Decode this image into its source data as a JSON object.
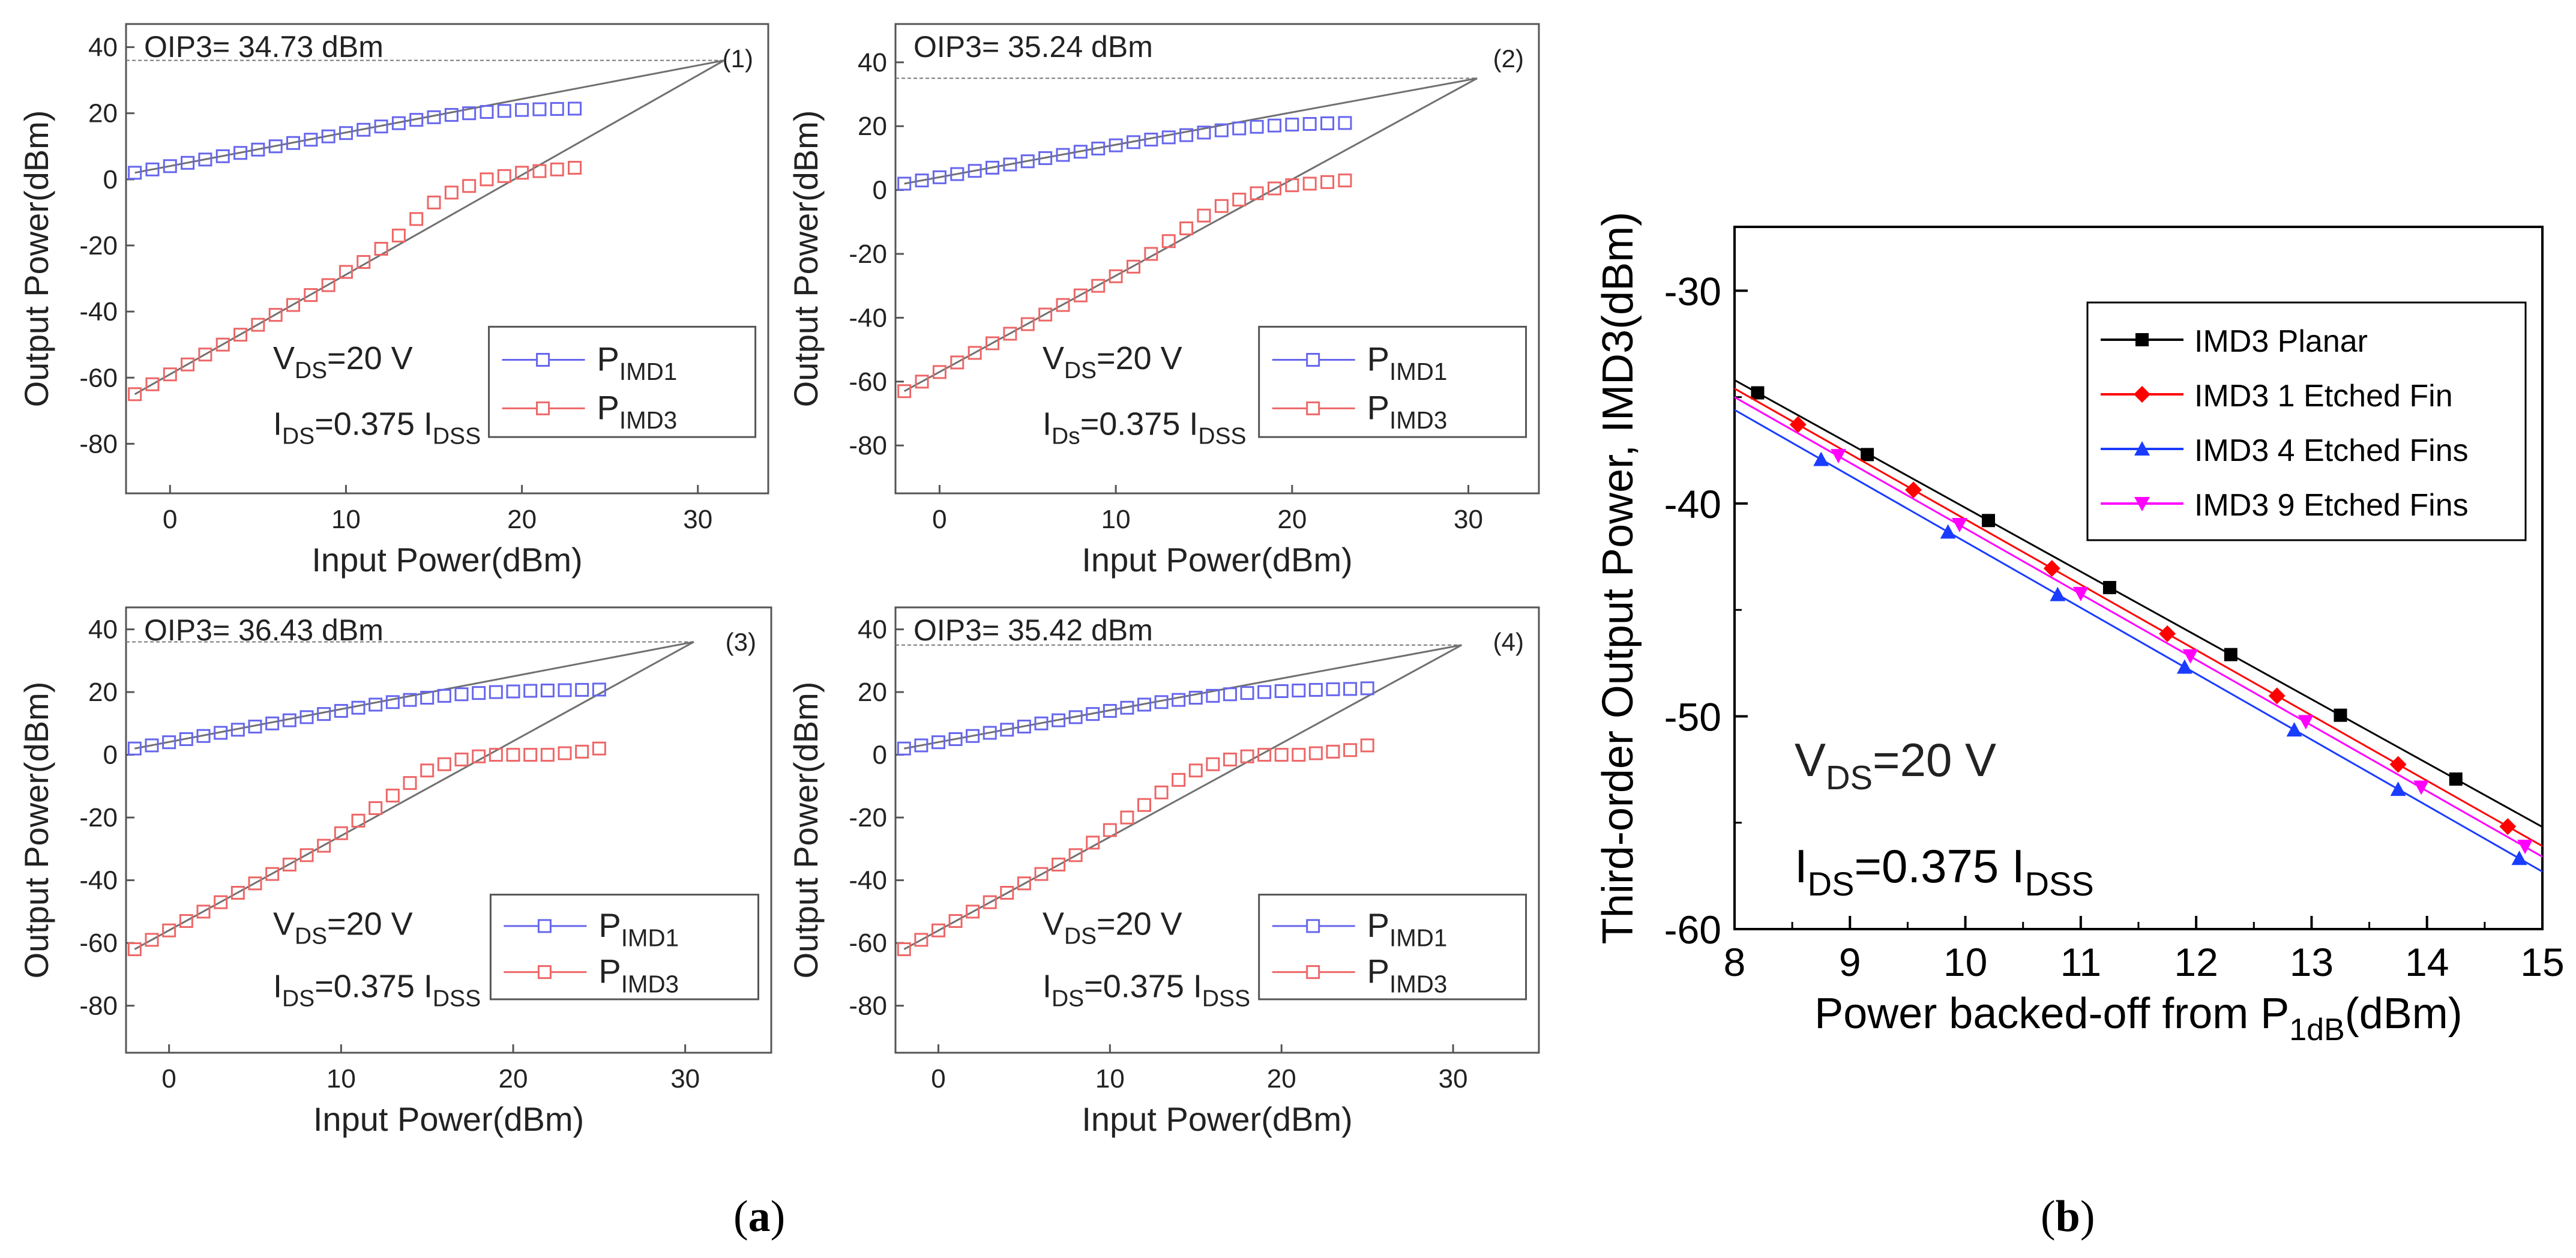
{
  "figure": {
    "caption_a": "(a)",
    "caption_b": "(b)",
    "panel_a_id": "a",
    "panel_b_id": "b"
  },
  "colors": {
    "pimd1": "#6666ee",
    "pimd3": "#ee6666",
    "fit": "#707070",
    "planar": "#000000",
    "etched1": "#ff0000",
    "etched4": "#1a3cff",
    "etched9": "#ff00ff"
  },
  "chart_data": [
    {
      "type": "line",
      "panel": "(1)",
      "title": "OIP3= 34.73 dBm",
      "xlabel": "Input Power(dBm)",
      "ylabel": "Output Power(dBm)",
      "xlim": [
        -2.5,
        34
      ],
      "ylim": [
        -95,
        47
      ],
      "xticks": [
        0,
        10,
        20,
        30
      ],
      "yticks": [
        -80,
        -60,
        -40,
        -20,
        0,
        20,
        40
      ],
      "annotations": [
        "VDS=20 V",
        "IDS=0.375 IDSS"
      ],
      "oip3_point": [
        31.5,
        36
      ],
      "x": [
        -2,
        -1,
        0,
        1,
        2,
        3,
        4,
        5,
        6,
        7,
        8,
        9,
        10,
        11,
        12,
        13,
        14,
        15,
        16,
        17,
        18,
        19,
        20,
        21,
        22,
        23
      ],
      "series": [
        {
          "name": "PIMD1",
          "values": [
            2,
            3,
            4,
            5,
            6,
            7,
            8,
            9,
            10,
            11,
            12,
            13,
            14,
            15,
            16,
            17,
            18,
            18.8,
            19.5,
            20,
            20.4,
            20.7,
            21,
            21.2,
            21.3,
            21.4
          ]
        },
        {
          "name": "PIMD3",
          "values": [
            -65,
            -62,
            -59,
            -56,
            -53,
            -50,
            -47,
            -44,
            -41,
            -38,
            -35,
            -32,
            -28,
            -25,
            -21,
            -17,
            -12,
            -7,
            -4,
            -2,
            0,
            1,
            2,
            2.5,
            3,
            3.5
          ]
        }
      ]
    },
    {
      "type": "line",
      "panel": "(2)",
      "title": "OIP3= 35.24 dBm",
      "xlabel": "Input Power(dBm)",
      "ylabel": "Output Power(dBm)",
      "xlim": [
        -2.5,
        34
      ],
      "ylim": [
        -95,
        52
      ],
      "xticks": [
        0,
        10,
        20,
        30
      ],
      "yticks": [
        -80,
        -60,
        -40,
        -20,
        0,
        20,
        40
      ],
      "annotations": [
        "VDS=20 V",
        "IDs=0.375 IDSS"
      ],
      "oip3_point": [
        30.5,
        35
      ],
      "x": [
        -2,
        -1,
        0,
        1,
        2,
        3,
        4,
        5,
        6,
        7,
        8,
        9,
        10,
        11,
        12,
        13,
        14,
        15,
        16,
        17,
        18,
        19,
        20,
        21,
        22,
        23
      ],
      "series": [
        {
          "name": "PIMD1",
          "values": [
            2,
            3,
            4,
            5,
            6,
            7,
            8,
            9,
            10,
            11,
            12,
            13,
            14,
            15,
            15.8,
            16.5,
            17.2,
            18,
            18.7,
            19.3,
            19.8,
            20.2,
            20.5,
            20.7,
            20.9,
            21
          ]
        },
        {
          "name": "PIMD3",
          "values": [
            -63,
            -60,
            -57,
            -54,
            -51,
            -48,
            -45,
            -42,
            -39,
            -36,
            -33,
            -30,
            -27,
            -24,
            -20,
            -16,
            -12,
            -8,
            -5,
            -3,
            -1,
            0.5,
            1.5,
            2,
            2.5,
            3
          ]
        }
      ]
    },
    {
      "type": "line",
      "panel": "(3)",
      "title": "OIP3= 36.43 dBm",
      "xlabel": "Input Power(dBm)",
      "ylabel": "Output Power(dBm)",
      "xlim": [
        -2.5,
        35
      ],
      "ylim": [
        -95,
        47
      ],
      "xticks": [
        0,
        10,
        20,
        30
      ],
      "yticks": [
        -80,
        -60,
        -40,
        -20,
        0,
        20,
        40
      ],
      "annotations": [
        "VDS=20 V",
        "IDS=0.375 IDSS"
      ],
      "oip3_point": [
        30.5,
        36
      ],
      "x": [
        -2,
        -1,
        0,
        1,
        2,
        3,
        4,
        5,
        6,
        7,
        8,
        9,
        10,
        11,
        12,
        13,
        14,
        15,
        16,
        17,
        18,
        19,
        20,
        21,
        22,
        23,
        24,
        25
      ],
      "series": [
        {
          "name": "PIMD1",
          "values": [
            2,
            3,
            4,
            5,
            6,
            7,
            8,
            9,
            10,
            11,
            12,
            13,
            14,
            15,
            16,
            16.8,
            17.5,
            18.2,
            18.8,
            19.3,
            19.7,
            20,
            20.2,
            20.4,
            20.5,
            20.6,
            20.7,
            20.8
          ]
        },
        {
          "name": "PIMD3",
          "values": [
            -62,
            -59,
            -56,
            -53,
            -50,
            -47,
            -44,
            -41,
            -38,
            -35,
            -32,
            -29,
            -25,
            -21,
            -17,
            -13,
            -9,
            -5,
            -3,
            -1.5,
            -0.5,
            0,
            0,
            0,
            0,
            0.5,
            1,
            2
          ]
        }
      ]
    },
    {
      "type": "line",
      "panel": "(4)",
      "title": "OIP3= 35.42 dBm",
      "xlabel": "Input Power(dBm)",
      "ylabel": "Output Power(dBm)",
      "xlim": [
        -2.5,
        35
      ],
      "ylim": [
        -95,
        47
      ],
      "xticks": [
        0,
        10,
        20,
        30
      ],
      "yticks": [
        -80,
        -60,
        -40,
        -20,
        0,
        20,
        40
      ],
      "annotations": [
        "VDS=20 V",
        "IDS=0.375 IDSS"
      ],
      "oip3_point": [
        30.5,
        35
      ],
      "x": [
        -2,
        -1,
        0,
        1,
        2,
        3,
        4,
        5,
        6,
        7,
        8,
        9,
        10,
        11,
        12,
        13,
        14,
        15,
        16,
        17,
        18,
        19,
        20,
        21,
        22,
        23,
        24,
        25
      ],
      "series": [
        {
          "name": "PIMD1",
          "values": [
            2,
            3,
            4,
            5,
            6,
            7,
            8,
            9,
            10,
            11,
            12,
            13,
            14,
            15,
            16,
            16.8,
            17.5,
            18.2,
            18.8,
            19.3,
            19.7,
            20,
            20.3,
            20.5,
            20.7,
            20.9,
            21,
            21.2
          ]
        },
        {
          "name": "PIMD3",
          "values": [
            -62,
            -59,
            -56,
            -53,
            -50,
            -47,
            -44,
            -41,
            -38,
            -35,
            -32,
            -28,
            -24,
            -20,
            -16,
            -12,
            -8,
            -5,
            -3,
            -1.5,
            -0.5,
            0,
            0,
            0,
            0.5,
            1,
            1.5,
            3
          ]
        }
      ]
    },
    {
      "type": "line",
      "panel": "(b)",
      "title": "",
      "xlabel": "Power backed-off from P1dB(dBm)",
      "ylabel": "Third-order Output Power, IMD3(dBm)",
      "xlim": [
        8,
        15
      ],
      "ylim": [
        -60,
        -27
      ],
      "xticks": [
        8,
        9,
        10,
        11,
        12,
        13,
        14,
        15
      ],
      "yticks": [
        -60,
        -50,
        -40,
        -30
      ],
      "annotations": [
        "VDS=20 V",
        "IDS=0.375 IDSS"
      ],
      "series": [
        {
          "name": "IMD3 Planar",
          "marker": "square",
          "color": "#000000",
          "line": [
            [
              8,
              -34.2
            ],
            [
              15,
              -55.2
            ]
          ],
          "x": [
            8.2,
            9.15,
            10.2,
            11.25,
            12.3,
            13.25,
            14.25
          ],
          "values": [
            -34.8,
            -37.7,
            -40.8,
            -43.95,
            -47.1,
            -49.95,
            -52.95
          ]
        },
        {
          "name": "IMD3 1 Etched Fin",
          "marker": "diamond",
          "color": "#ff0000",
          "line": [
            [
              8,
              -34.6
            ],
            [
              15,
              -56.1
            ]
          ],
          "x": [
            8.55,
            9.55,
            10.75,
            11.75,
            12.7,
            13.75,
            14.7
          ],
          "values": [
            -36.29,
            -39.36,
            -43.05,
            -46.12,
            -49.04,
            -52.26,
            -55.18
          ]
        },
        {
          "name": "IMD3 4 Etched Fins",
          "marker": "triangle",
          "color": "#1a3cff",
          "line": [
            [
              8,
              -35.6
            ],
            [
              15,
              -57.3
            ]
          ],
          "x": [
            8.75,
            9.85,
            10.8,
            11.9,
            12.85,
            13.75,
            14.8
          ],
          "values": [
            -37.93,
            -41.34,
            -44.28,
            -47.69,
            -50.64,
            -53.43,
            -56.68
          ]
        },
        {
          "name": "IMD3 9 Etched Fins",
          "marker": "triangle-down",
          "color": "#ff00ff",
          "line": [
            [
              8,
              -35.0
            ],
            [
              15,
              -56.6
            ]
          ],
          "x": [
            8.9,
            9.95,
            11.0,
            11.95,
            12.95,
            13.95,
            14.85
          ],
          "values": [
            -37.75,
            -40.99,
            -44.23,
            -47.16,
            -50.25,
            -53.33,
            -56.11
          ]
        }
      ]
    }
  ]
}
